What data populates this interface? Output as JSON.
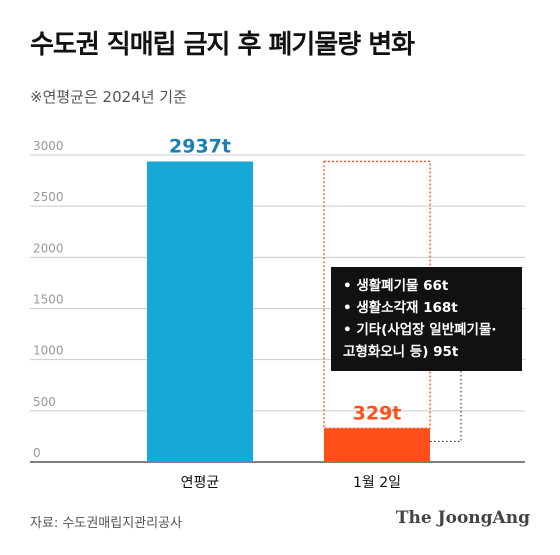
{
  "title": "수도권 직매립 금지 후 폐기물량 변화",
  "subtitle": "※연평균은 2024년 기준",
  "source": "자료: 수도권매립지관리공사",
  "brand": "The JoongAng",
  "callout": {
    "lines": [
      "• 생활폐기물 66t",
      "• 생활소각재 168t",
      "• 기타(사업장 일반폐기물·",
      "고형화오니 등) 95t"
    ]
  },
  "colors": {
    "bar_average": "#17a8d6",
    "bar_jan2": "#ff4f1a",
    "label_average": "#1a7fb4",
    "label_jan2": "#ff4f1a",
    "grid": "#cccccc",
    "callout_bg": "#111111"
  },
  "chart_data": {
    "type": "bar",
    "categories": [
      "연평균",
      "1월 2일"
    ],
    "values": [
      2937,
      329
    ],
    "data_labels": [
      "2937t",
      "329t"
    ],
    "title": "수도권 직매립 금지 후 폐기물량 변화",
    "ylim": [
      0,
      3000
    ],
    "yticks": [
      0,
      500,
      1000,
      1500,
      2000,
      2500,
      3000
    ],
    "grid": true,
    "dashed_outline_on": "1월 2일"
  }
}
